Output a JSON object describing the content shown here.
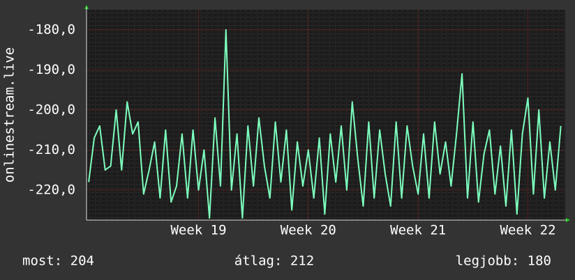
{
  "chart_data": {
    "type": "line",
    "y_label": "onlinestream.live",
    "x": [
      18.0,
      18.05,
      18.1,
      18.15,
      18.2,
      18.25,
      18.3,
      18.35,
      18.4,
      18.45,
      18.5,
      18.55,
      18.6,
      18.65,
      18.7,
      18.75,
      18.8,
      18.85,
      18.9,
      18.95,
      19.0,
      19.05,
      19.1,
      19.15,
      19.2,
      19.25,
      19.3,
      19.35,
      19.4,
      19.45,
      19.5,
      19.55,
      19.6,
      19.65,
      19.7,
      19.75,
      19.8,
      19.85,
      19.9,
      19.95,
      20.0,
      20.05,
      20.1,
      20.15,
      20.2,
      20.25,
      20.3,
      20.35,
      20.4,
      20.45,
      20.5,
      20.55,
      20.6,
      20.65,
      20.7,
      20.75,
      20.8,
      20.85,
      20.9,
      20.95,
      21.0,
      21.05,
      21.1,
      21.15,
      21.2,
      21.25,
      21.3,
      21.35,
      21.4,
      21.45,
      21.5,
      21.55,
      21.6,
      21.65,
      21.7,
      21.75,
      21.8,
      21.85,
      21.9,
      21.95,
      22.0,
      22.05,
      22.1,
      22.15,
      22.2,
      22.25,
      22.3
    ],
    "series": [
      {
        "color": "#7dffbe",
        "values": [
          -218,
          -207,
          -204,
          -215,
          -214,
          -200,
          -215,
          -198,
          -206,
          -203,
          -221,
          -215,
          -208,
          -222,
          -205,
          -223,
          -219,
          -206,
          -222,
          -205,
          -220,
          -210,
          -227,
          -202,
          -219,
          -180,
          -220,
          -206,
          -227,
          -204,
          -219,
          -202,
          -214,
          -222,
          -203,
          -218,
          -205,
          -225,
          -208,
          -219,
          -210,
          -222,
          -207,
          -226,
          -206,
          -218,
          -204,
          -220,
          -198,
          -212,
          -224,
          -203,
          -222,
          -205,
          -216,
          -224,
          -203,
          -222,
          -204,
          -214,
          -221,
          -206,
          -222,
          -203,
          -216,
          -208,
          -219,
          -206,
          -191,
          -222,
          -203,
          -223,
          -211,
          -205,
          -221,
          -209,
          -224,
          -205,
          -226,
          -206,
          -197,
          -221,
          -200,
          -222,
          -208,
          -220,
          -204
        ]
      }
    ],
    "xlim": [
      17.98,
      22.34
    ],
    "xticks": [
      {
        "value": 19,
        "label": "Week 19"
      },
      {
        "value": 20,
        "label": "Week 20"
      },
      {
        "value": 21,
        "label": "Week 21"
      },
      {
        "value": 22,
        "label": "Week 22"
      }
    ],
    "ylim": [
      -227.5,
      -175
    ],
    "yticks": [
      {
        "value": -180,
        "label": "-180,0"
      },
      {
        "value": -190,
        "label": "-190,0"
      },
      {
        "value": -200,
        "label": "-200,0"
      },
      {
        "value": -210,
        "label": "-210,0"
      },
      {
        "value": -220,
        "label": "-220,0"
      }
    ],
    "grid": true,
    "stats": {
      "current": "most: 204",
      "average": "átlag: 212",
      "best": "legjobb: 180"
    }
  }
}
